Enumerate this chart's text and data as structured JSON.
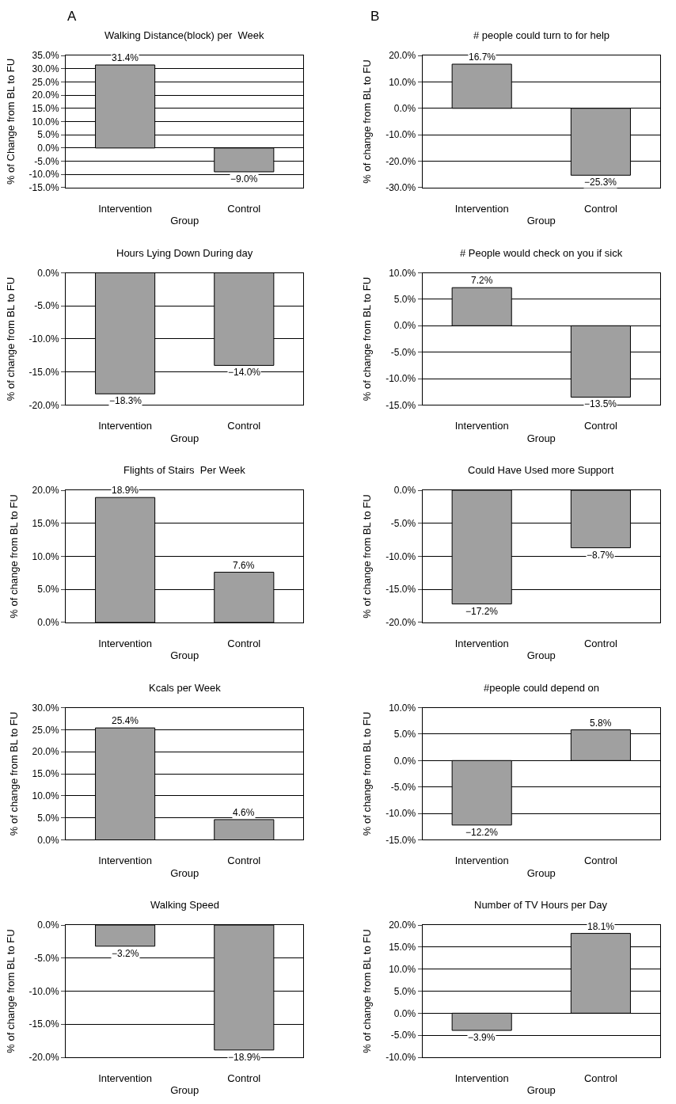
{
  "chart_data": [
    {
      "type": "bar",
      "title": "Walking Distance(block) per  Week",
      "xlabel": "Group",
      "ylabel": "% of Change from BL to FU",
      "categories": [
        "Intervention",
        "Control"
      ],
      "values": [
        31.4,
        -9.0
      ],
      "value_labels": [
        "31.4%",
        "−9.0%"
      ],
      "color": "#a0a0a0",
      "ylim": [
        -15,
        35
      ],
      "yticks": [
        {
          "value": -15,
          "label": "-15.0%"
        },
        {
          "value": -10,
          "label": "-10.0%"
        },
        {
          "value": -5,
          "label": "-5.0%"
        },
        {
          "value": 0,
          "label": "0.0%"
        },
        {
          "value": 5,
          "label": "5.0%"
        },
        {
          "value": 10,
          "label": "10.0%"
        },
        {
          "value": 15,
          "label": "15.0%"
        },
        {
          "value": 20,
          "label": "20.0%"
        },
        {
          "value": 25,
          "label": "25.0%"
        },
        {
          "value": 30,
          "label": "30.0%"
        },
        {
          "value": 35,
          "label": "35.0%"
        }
      ],
      "grid": "y",
      "annotations": [
        "A"
      ]
    },
    {
      "type": "bar",
      "title": "Hours Lying Down During day",
      "xlabel": "Group",
      "ylabel": "% of change from BL to FU",
      "categories": [
        "Intervention",
        "Control"
      ],
      "values": [
        -18.3,
        -14.0
      ],
      "value_labels": [
        "−18.3%",
        "−14.0%"
      ],
      "color": "#a0a0a0",
      "ylim": [
        -20,
        0
      ],
      "yticks": [
        {
          "value": -20,
          "label": "-20.0%"
        },
        {
          "value": -15,
          "label": "-15.0%"
        },
        {
          "value": -10,
          "label": "-10.0%"
        },
        {
          "value": -5,
          "label": "-5.0%"
        },
        {
          "value": 0,
          "label": "0.0%"
        }
      ],
      "grid": "y"
    },
    {
      "type": "bar",
      "title": "Flights of Stairs  Per Week",
      "xlabel": "Group",
      "ylabel": "% of change from BL to FU",
      "categories": [
        "Intervention",
        "Control"
      ],
      "values": [
        18.9,
        7.6
      ],
      "value_labels": [
        "18.9%",
        "7.6%"
      ],
      "color": "#a0a0a0",
      "ylim": [
        0,
        20
      ],
      "yticks": [
        {
          "value": 0,
          "label": "0.0%"
        },
        {
          "value": 5,
          "label": "5.0%"
        },
        {
          "value": 10,
          "label": "10.0%"
        },
        {
          "value": 15,
          "label": "15.0%"
        },
        {
          "value": 20,
          "label": "20.0%"
        }
      ],
      "grid": "y"
    },
    {
      "type": "bar",
      "title": "Kcals per Week",
      "xlabel": "Group",
      "ylabel": "% of change from BL to FU",
      "categories": [
        "Intervention",
        "Control"
      ],
      "values": [
        25.4,
        4.6
      ],
      "value_labels": [
        "25.4%",
        "4.6%"
      ],
      "color": "#a0a0a0",
      "ylim": [
        0,
        30
      ],
      "yticks": [
        {
          "value": 0,
          "label": "0.0%"
        },
        {
          "value": 5,
          "label": "5.0%"
        },
        {
          "value": 10,
          "label": "10.0%"
        },
        {
          "value": 15,
          "label": "15.0%"
        },
        {
          "value": 20,
          "label": "20.0%"
        },
        {
          "value": 25,
          "label": "25.0%"
        },
        {
          "value": 30,
          "label": "30.0%"
        }
      ],
      "grid": "y"
    },
    {
      "type": "bar",
      "title": "Walking Speed",
      "xlabel": "Group",
      "ylabel": "% of change from BL to FU",
      "categories": [
        "Intervention",
        "Control"
      ],
      "values": [
        -3.2,
        -18.9
      ],
      "value_labels": [
        "−3.2%",
        "−18.9%"
      ],
      "color": "#a0a0a0",
      "ylim": [
        -20,
        0
      ],
      "yticks": [
        {
          "value": -20,
          "label": "-20.0%"
        },
        {
          "value": -15,
          "label": "-15.0%"
        },
        {
          "value": -10,
          "label": "-10.0%"
        },
        {
          "value": -5,
          "label": "-5.0%"
        },
        {
          "value": 0,
          "label": "0.0%"
        }
      ],
      "grid": "y"
    },
    {
      "type": "bar",
      "title": "# people could turn to for help",
      "xlabel": "Group",
      "ylabel": "% of change from BL to FU",
      "categories": [
        "Intervention",
        "Control"
      ],
      "values": [
        16.7,
        -25.3
      ],
      "value_labels": [
        "16.7%",
        "−25.3%"
      ],
      "color": "#a0a0a0",
      "ylim": [
        -30,
        20
      ],
      "yticks": [
        {
          "value": -30,
          "label": "-30.0%"
        },
        {
          "value": -20,
          "label": "-20.0%"
        },
        {
          "value": -10,
          "label": "-10.0%"
        },
        {
          "value": 0,
          "label": "0.0%"
        },
        {
          "value": 10,
          "label": "10.0%"
        },
        {
          "value": 20,
          "label": "20.0%"
        }
      ],
      "grid": "y",
      "annotations": [
        "B"
      ]
    },
    {
      "type": "bar",
      "title": "# People would check on you if sick",
      "xlabel": "Group",
      "ylabel": "% of change from BL to FU",
      "categories": [
        "Intervention",
        "Control"
      ],
      "values": [
        7.2,
        -13.5
      ],
      "value_labels": [
        "7.2%",
        "−13.5%"
      ],
      "color": "#a0a0a0",
      "ylim": [
        -15,
        10
      ],
      "yticks": [
        {
          "value": -15,
          "label": "-15.0%"
        },
        {
          "value": -10,
          "label": "-10.0%"
        },
        {
          "value": -5,
          "label": "-5.0%"
        },
        {
          "value": 0,
          "label": "0.0%"
        },
        {
          "value": 5,
          "label": "5.0%"
        },
        {
          "value": 10,
          "label": "10.0%"
        }
      ],
      "grid": "y"
    },
    {
      "type": "bar",
      "title": "Could Have Used more Support",
      "xlabel": "Group",
      "ylabel": "% of change from BL to FU",
      "categories": [
        "Intervention",
        "Control"
      ],
      "values": [
        -17.2,
        -8.7
      ],
      "value_labels": [
        "−17.2%",
        "−8.7%"
      ],
      "color": "#a0a0a0",
      "ylim": [
        -20,
        0
      ],
      "yticks": [
        {
          "value": -20,
          "label": "-20.0%"
        },
        {
          "value": -15,
          "label": "-15.0%"
        },
        {
          "value": -10,
          "label": "-10.0%"
        },
        {
          "value": -5,
          "label": "-5.0%"
        },
        {
          "value": 0,
          "label": "0.0%"
        }
      ],
      "grid": "y"
    },
    {
      "type": "bar",
      "title": "#people could depend on",
      "xlabel": "Group",
      "ylabel": "% of change from BL to FU",
      "categories": [
        "Intervention",
        "Control"
      ],
      "values": [
        -12.2,
        5.8
      ],
      "value_labels": [
        "−12.2%",
        "5.8%"
      ],
      "color": "#a0a0a0",
      "ylim": [
        -15,
        10
      ],
      "yticks": [
        {
          "value": -15,
          "label": "-15.0%"
        },
        {
          "value": -10,
          "label": "-10.0%"
        },
        {
          "value": -5,
          "label": "-5.0%"
        },
        {
          "value": 0,
          "label": "0.0%"
        },
        {
          "value": 5,
          "label": "5.0%"
        },
        {
          "value": 10,
          "label": "10.0%"
        }
      ],
      "grid": "y"
    },
    {
      "type": "bar",
      "title": "Number of TV Hours per Day",
      "xlabel": "Group",
      "ylabel": "% of change from BL to FU",
      "categories": [
        "Intervention",
        "Control"
      ],
      "values": [
        -3.9,
        18.1
      ],
      "value_labels": [
        "−3.9%",
        "18.1%"
      ],
      "color": "#a0a0a0",
      "ylim": [
        -10,
        20
      ],
      "yticks": [
        {
          "value": -10,
          "label": "-10.0%"
        },
        {
          "value": -5,
          "label": "-5.0%"
        },
        {
          "value": 0,
          "label": "0.0%"
        },
        {
          "value": 5,
          "label": "5.0%"
        },
        {
          "value": 10,
          "label": "10.0%"
        },
        {
          "value": 15,
          "label": "15.0%"
        },
        {
          "value": 20,
          "label": "20.0%"
        }
      ],
      "grid": "y"
    }
  ]
}
